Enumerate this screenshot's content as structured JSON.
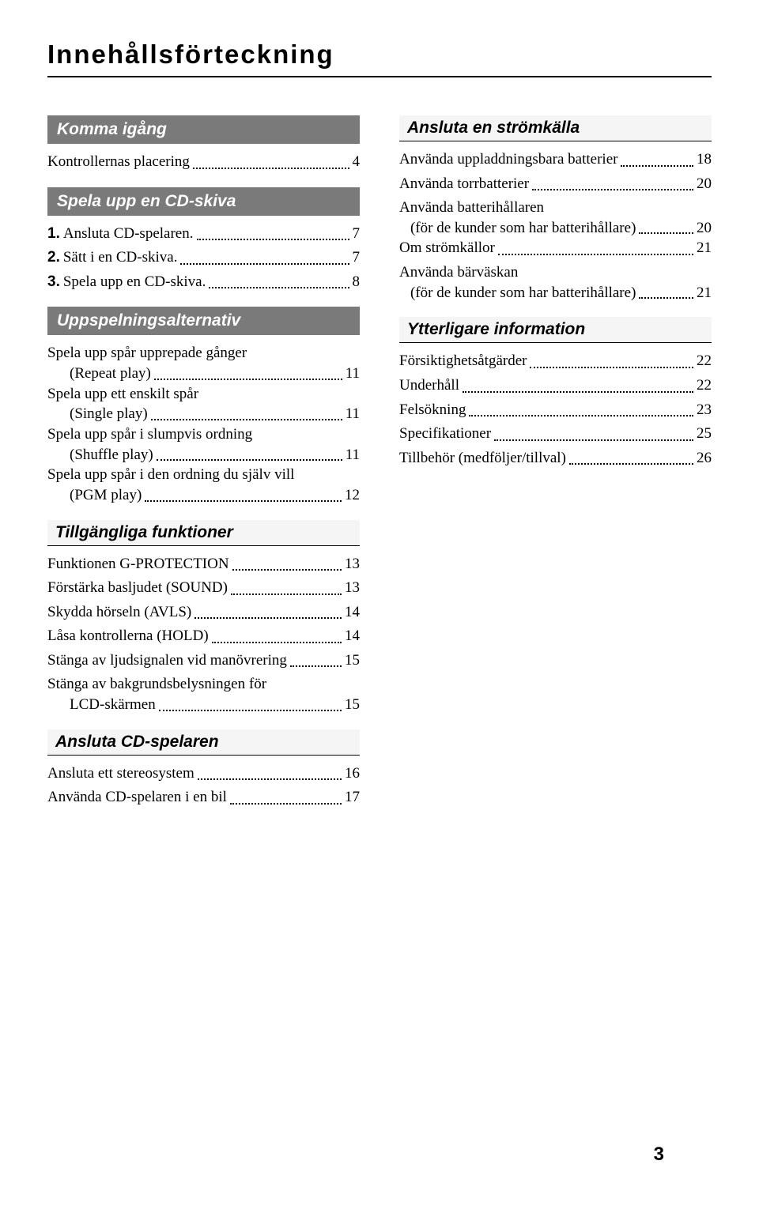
{
  "title": "Innehållsförteckning",
  "pageNumber": "3",
  "left": [
    {
      "header": "Komma igång",
      "style": "reversed",
      "items": [
        {
          "label": "Kontrollernas placering",
          "page": "4"
        }
      ]
    },
    {
      "header": "Spela upp en CD-skiva",
      "style": "reversed",
      "items": [
        {
          "num": "1.",
          "label": "Ansluta CD-spelaren.",
          "page": "7"
        },
        {
          "num": "2.",
          "label": "Sätt i en CD-skiva.",
          "page": "7"
        },
        {
          "num": "3.",
          "label": "Spela upp en CD-skiva.",
          "page": "8"
        }
      ]
    },
    {
      "header": "Uppspelningsalternativ",
      "style": "reversed",
      "items": [
        {
          "lead": "Spela upp spår upprepade gånger",
          "tail": "(Repeat play)",
          "page": "11"
        },
        {
          "lead": "Spela upp ett enskilt spår",
          "tail": "(Single play)",
          "page": "11"
        },
        {
          "lead": "Spela upp spår i slumpvis ordning",
          "tail": "(Shuffle play)",
          "page": "11"
        },
        {
          "lead": "Spela upp spår i den ordning du själv vill",
          "tail": "(PGM play)",
          "page": "12"
        }
      ]
    },
    {
      "header": "Tillgängliga funktioner",
      "style": "underlined",
      "items": [
        {
          "label": "Funktionen G-PROTECTION",
          "page": "13"
        },
        {
          "label": "Förstärka basljudet (SOUND)",
          "page": "13"
        },
        {
          "label": "Skydda hörseln (AVLS)",
          "page": "14"
        },
        {
          "label": "Låsa kontrollerna (HOLD)",
          "page": "14"
        },
        {
          "label": "Stänga av ljudsignalen vid manövrering",
          "page": "15"
        },
        {
          "lead": "Stänga av bakgrundsbelysningen för",
          "tail": "LCD-skärmen",
          "page": "15"
        }
      ]
    },
    {
      "header": "Ansluta CD-spelaren",
      "style": "underlined",
      "items": [
        {
          "label": "Ansluta ett stereosystem",
          "page": "16"
        },
        {
          "label": "Använda CD-spelaren i en bil",
          "page": "17"
        }
      ]
    }
  ],
  "right": [
    {
      "header": "Ansluta en strömkälla",
      "style": "underlined",
      "items": [
        {
          "label": "Använda uppladdningsbara batterier",
          "page": "18"
        },
        {
          "label": "Använda torrbatterier",
          "page": "20"
        },
        {
          "lead": "Använda batterihållaren",
          "tail": "(för de kunder som har batterihållare)",
          "page": "20",
          "tailIndent": "14"
        },
        {
          "label": "Om strömkällor",
          "page": "21"
        },
        {
          "lead": "Använda bärväskan",
          "tail": "(för de kunder som har batterihållare)",
          "page": "21",
          "tailIndent": "14"
        }
      ]
    },
    {
      "header": "Ytterligare information",
      "style": "underlined",
      "items": [
        {
          "label": "Försiktighetsåtgärder",
          "page": "22"
        },
        {
          "label": "Underhåll",
          "page": "22"
        },
        {
          "label": "Felsökning",
          "page": "23"
        },
        {
          "label": "Specifikationer",
          "page": "25"
        },
        {
          "label": "Tillbehör (medföljer/tillval)",
          "page": "26"
        }
      ]
    }
  ]
}
